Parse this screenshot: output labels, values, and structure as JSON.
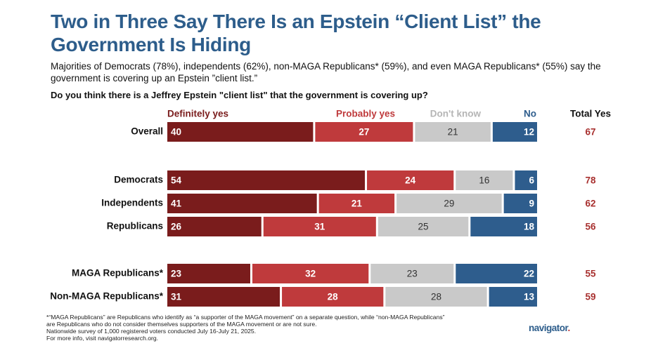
{
  "chart_data": {
    "type": "stacked_bar_h",
    "title": "Two in Three Say There Is an Epstein “Client List” the Government Is Hiding",
    "subtitle": "Majorities of Democrats (78%), independents (62%), non-MAGA Republicans* (59%), and even MAGA Republicans* (55%) say the government is covering up an Epstein ”client list.”",
    "question": "Do you think there is a Jeffrey Epstein \"client list\" that the government is covering up?",
    "categories": [
      "Overall",
      "Democrats",
      "Independents",
      "Republicans",
      "MAGA Republicans*",
      "Non-MAGA Republicans*"
    ],
    "xlim": [
      0,
      100
    ],
    "series": [
      {
        "name": "Definitely yes",
        "color": "#7a1c1c",
        "values": [
          40,
          54,
          41,
          26,
          23,
          31
        ]
      },
      {
        "name": "Probably yes",
        "color": "#bf3a3c",
        "values": [
          27,
          24,
          21,
          31,
          32,
          28
        ]
      },
      {
        "name": "Don't know",
        "color": "#c9c9c9",
        "values": [
          21,
          16,
          29,
          25,
          23,
          28
        ]
      },
      {
        "name": "No",
        "color": "#2e5d8d",
        "values": [
          12,
          6,
          9,
          18,
          22,
          13
        ]
      }
    ],
    "total_yes": {
      "label": "Total Yes",
      "color": "#a8302f",
      "values": [
        67,
        78,
        62,
        56,
        55,
        59
      ]
    },
    "footnotes": [
      "*“MAGA Republicans” are Republicans who identify as “a supporter of the MAGA movement” on a separate question, while “non-MAGA Republicans” are Republicans who do not consider themselves supporters of the MAGA movement or are not sure.",
      "Nationwide survey of 1,000 registered voters conducted July 16-July 21, 2025.",
      "For more info, visit navigatorresearch.org."
    ],
    "logo": [
      "navigator",
      "."
    ]
  }
}
